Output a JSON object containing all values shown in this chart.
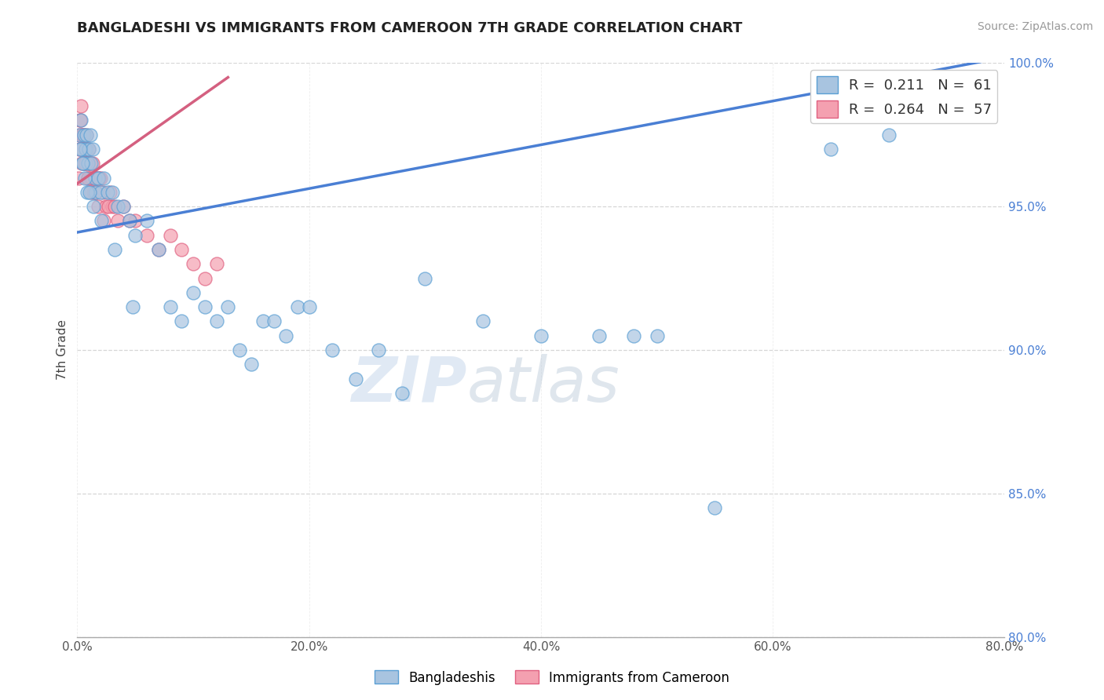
{
  "title": "BANGLADESHI VS IMMIGRANTS FROM CAMEROON 7TH GRADE CORRELATION CHART",
  "source": "Source: ZipAtlas.com",
  "ylabel": "7th Grade",
  "xlim": [
    0.0,
    80.0
  ],
  "ylim": [
    80.0,
    100.0
  ],
  "yticks": [
    80.0,
    85.0,
    90.0,
    95.0,
    100.0
  ],
  "xticks": [
    0.0,
    20.0,
    40.0,
    60.0,
    80.0
  ],
  "blue_R": 0.211,
  "blue_N": 61,
  "pink_R": 0.264,
  "pink_N": 57,
  "blue_color": "#a8c4e0",
  "pink_color": "#f4a0b0",
  "blue_edge_color": "#5a9fd4",
  "pink_edge_color": "#e06080",
  "blue_line_color": "#4a7fd4",
  "pink_line_color": "#d46080",
  "watermark": "ZIPatlas",
  "legend_label_blue": "Bangladeshis",
  "legend_label_pink": "Immigrants from Cameroon",
  "blue_scatter_x": [
    0.2,
    0.3,
    0.4,
    0.5,
    0.6,
    0.7,
    0.8,
    0.9,
    1.0,
    1.1,
    1.2,
    1.3,
    1.5,
    1.6,
    1.8,
    2.0,
    2.3,
    2.6,
    3.0,
    3.5,
    4.0,
    4.5,
    5.0,
    6.0,
    7.0,
    8.0,
    9.0,
    10.0,
    11.0,
    12.0,
    13.0,
    14.0,
    15.0,
    16.0,
    17.0,
    18.0,
    19.0,
    20.0,
    22.0,
    24.0,
    26.0,
    28.0,
    30.0,
    35.0,
    40.0,
    50.0,
    55.0,
    65.0,
    70.0,
    75.0,
    0.25,
    0.45,
    0.65,
    0.85,
    1.05,
    1.4,
    2.1,
    3.2,
    4.8,
    45.0,
    48.0
  ],
  "blue_scatter_y": [
    97.5,
    98.0,
    97.0,
    96.5,
    97.5,
    97.0,
    97.5,
    96.5,
    97.0,
    97.5,
    96.5,
    97.0,
    96.0,
    95.5,
    96.0,
    95.5,
    96.0,
    95.5,
    95.5,
    95.0,
    95.0,
    94.5,
    94.0,
    94.5,
    93.5,
    91.5,
    91.0,
    92.0,
    91.5,
    91.0,
    91.5,
    90.0,
    89.5,
    91.0,
    91.0,
    90.5,
    91.5,
    91.5,
    90.0,
    89.0,
    90.0,
    88.5,
    92.5,
    91.0,
    90.5,
    90.5,
    84.5,
    97.0,
    97.5,
    99.5,
    97.0,
    96.5,
    96.0,
    95.5,
    95.5,
    95.0,
    94.5,
    93.5,
    91.5,
    90.5,
    90.5
  ],
  "pink_scatter_x": [
    0.1,
    0.15,
    0.2,
    0.25,
    0.3,
    0.35,
    0.4,
    0.45,
    0.5,
    0.55,
    0.6,
    0.65,
    0.7,
    0.75,
    0.8,
    0.85,
    0.9,
    0.95,
    1.0,
    1.05,
    1.1,
    1.15,
    1.2,
    1.3,
    1.4,
    1.5,
    1.6,
    1.7,
    1.8,
    2.0,
    2.2,
    2.5,
    2.8,
    3.0,
    3.5,
    4.0,
    5.0,
    6.0,
    7.0,
    8.0,
    9.0,
    10.0,
    11.0,
    12.0,
    1.25,
    1.55,
    1.9,
    2.3,
    0.22,
    0.42,
    0.62,
    0.72,
    0.92,
    2.7,
    4.5,
    3.2,
    0.3
  ],
  "pink_scatter_y": [
    96.0,
    97.0,
    97.5,
    98.0,
    98.5,
    97.5,
    96.5,
    97.0,
    97.5,
    96.5,
    97.5,
    96.5,
    97.0,
    97.0,
    97.5,
    97.0,
    96.5,
    96.0,
    97.0,
    96.5,
    96.0,
    96.5,
    95.5,
    96.5,
    95.5,
    96.0,
    95.5,
    96.0,
    95.0,
    96.0,
    95.5,
    95.0,
    95.5,
    95.0,
    94.5,
    95.0,
    94.5,
    94.0,
    93.5,
    94.0,
    93.5,
    93.0,
    92.5,
    93.0,
    96.0,
    95.5,
    96.0,
    94.5,
    98.0,
    97.5,
    97.0,
    96.5,
    96.0,
    95.0,
    94.5,
    95.0,
    97.0
  ],
  "blue_line_x": [
    0.0,
    80.0
  ],
  "blue_line_y": [
    94.1,
    100.2
  ],
  "pink_line_x": [
    0.0,
    13.0
  ],
  "pink_line_y": [
    95.8,
    99.5
  ]
}
